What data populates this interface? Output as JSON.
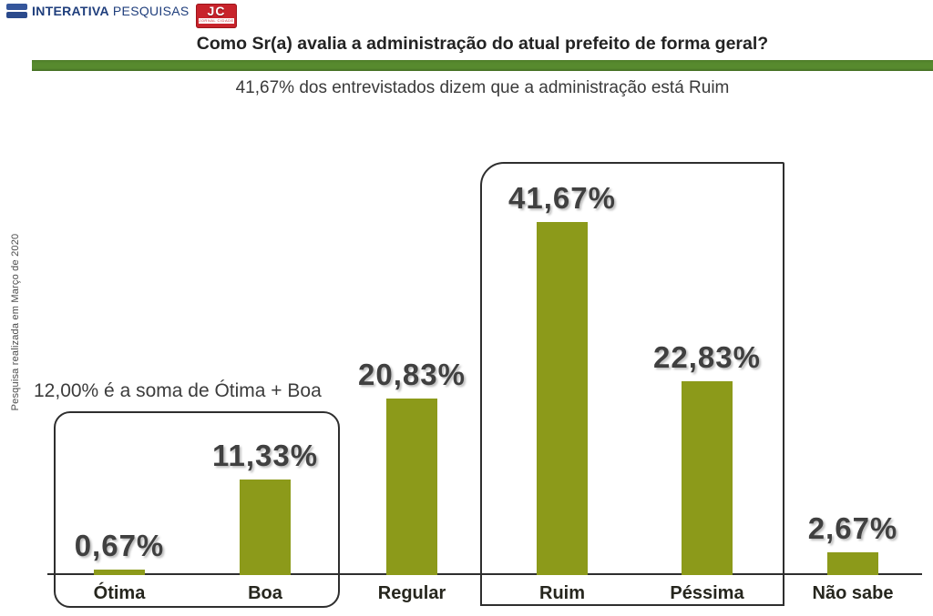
{
  "header": {
    "brand": {
      "icon": "two-bars-icon",
      "name": "INTERATIVA",
      "suffix": "PESQUISAS"
    },
    "jc": {
      "text": "JC",
      "sub": "JORNAL CIDADE"
    }
  },
  "title": "Como Sr(a) avalia a administração do atual prefeito de forma geral?",
  "subtitle": "41,67% dos entrevistados dizem que a administração está Ruim",
  "side_note": "Pesquisa realizada em Março de 2020",
  "annotation": "12,00% é a soma de Ótima + Boa",
  "colors": {
    "bar": "#8C9A1A",
    "divider_green": "#578A2E",
    "brand_blue": "#1F3E7C",
    "jc_red": "#C8232B",
    "text_dark": "#333333"
  },
  "chart_data": {
    "type": "bar",
    "title": "Como Sr(a) avalia a administração do atual prefeito de forma geral?",
    "subtitle": "41,67% dos entrevistados dizem que a administração está Ruim",
    "categories": [
      "Ótima",
      "Boa",
      "Regular",
      "Ruim",
      "Péssima",
      "Não sabe"
    ],
    "values": [
      0.67,
      11.33,
      20.83,
      41.67,
      22.83,
      2.67
    ],
    "value_labels": [
      "0,67%",
      "11,33%",
      "20,83%",
      "41,67%",
      "22,83%",
      "2,67%"
    ],
    "unit": "%",
    "xlabel": "",
    "ylabel": "",
    "ylim": [
      0,
      45
    ],
    "grid": false,
    "legend": false,
    "bar_color": "#8C9A1A",
    "highlight_boxes": [
      {
        "categories": [
          "Ótima",
          "Boa"
        ],
        "label": "12,00% é a soma de Ótima + Boa"
      },
      {
        "categories": [
          "Ruim",
          "Péssima"
        ],
        "label": ""
      }
    ]
  }
}
